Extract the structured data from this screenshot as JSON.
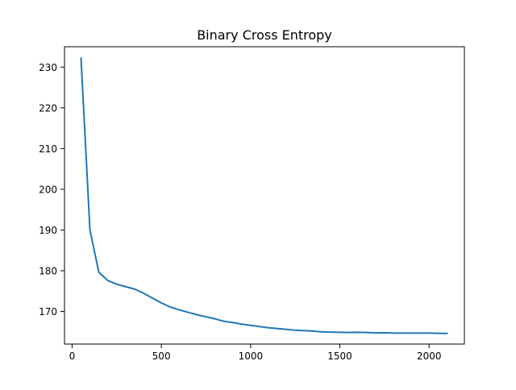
{
  "chart_data": {
    "type": "line",
    "title": "Binary Cross Entropy",
    "xlabel": "",
    "ylabel": "",
    "xlim": [
      -42.5,
      2197.5
    ],
    "ylim": [
      162.0,
      235.0
    ],
    "x_ticks": [
      0,
      500,
      1000,
      1500,
      2000
    ],
    "y_ticks": [
      170,
      180,
      190,
      200,
      210,
      220,
      230
    ],
    "grid": false,
    "legend": "none",
    "series": [
      {
        "color": "#1f77b4",
        "x": [
          50,
          100,
          150,
          200,
          250,
          300,
          350,
          400,
          450,
          500,
          550,
          600,
          650,
          700,
          750,
          800,
          850,
          900,
          950,
          1000,
          1050,
          1100,
          1150,
          1200,
          1250,
          1300,
          1350,
          1400,
          1450,
          1500,
          1550,
          1600,
          1650,
          1700,
          1750,
          1800,
          1850,
          1900,
          1950,
          2000,
          2050,
          2100
        ],
        "values": [
          232.2,
          190.0,
          179.6,
          177.6,
          176.7,
          176.1,
          175.5,
          174.5,
          173.3,
          172.1,
          171.1,
          170.4,
          169.8,
          169.2,
          168.7,
          168.2,
          167.6,
          167.3,
          166.9,
          166.6,
          166.3,
          166.0,
          165.8,
          165.6,
          165.4,
          165.3,
          165.2,
          165.0,
          164.95,
          164.9,
          164.85,
          164.9,
          164.85,
          164.75,
          164.8,
          164.7,
          164.7,
          164.7,
          164.7,
          164.7,
          164.65,
          164.6
        ]
      }
    ]
  }
}
